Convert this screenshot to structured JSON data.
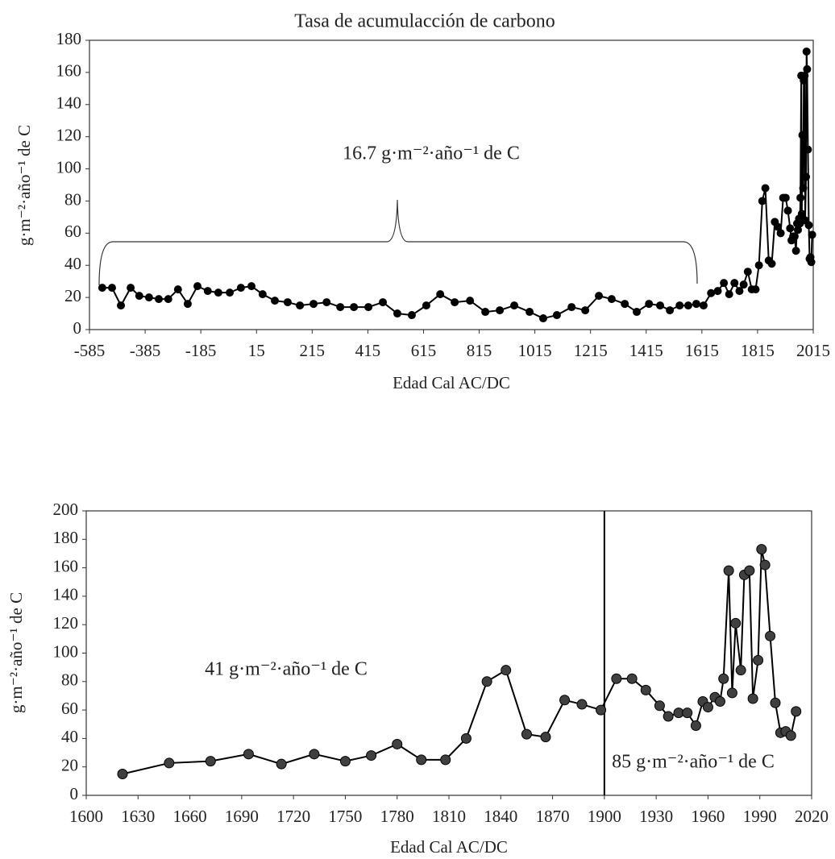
{
  "chart_data": [
    {
      "type": "line",
      "title": "Tasa de acumulacción de carbono",
      "annotation": "16.7 g·m⁻²·año⁻¹ de C",
      "x_label": "Edad Cal AC/DC",
      "y_label": "g·m⁻²·año⁻¹ de C",
      "x": [
        -539,
        -504,
        -472,
        -437,
        -406,
        -371,
        -336,
        -302,
        -267,
        -232,
        -197,
        -160,
        -122,
        -81,
        -41,
        -3,
        37,
        81,
        127,
        171,
        220,
        267,
        316,
        365,
        417,
        469,
        521,
        573,
        625,
        675,
        727,
        782,
        837,
        889,
        941,
        996,
        1045,
        1094,
        1147,
        1196,
        1245,
        1291,
        1338,
        1381,
        1425,
        1465,
        1500,
        1535,
        1566,
        1595,
        1621,
        1648,
        1672,
        1694,
        1713,
        1732,
        1750,
        1765,
        1780,
        1794,
        1808,
        1820,
        1832,
        1843,
        1855,
        1866,
        1877,
        1887,
        1898,
        1907,
        1916,
        1924,
        1932,
        1937,
        1943,
        1948,
        1953,
        1957,
        1960,
        1964,
        1967,
        1969,
        1972,
        1974,
        1976,
        1979,
        1981,
        1984,
        1986,
        1989,
        1991,
        1993,
        1996,
        1999,
        2002,
        2005,
        2008,
        2011
      ],
      "series": [
        {
          "color": "#000000",
          "marker_color": "#000000",
          "values": [
            26,
            26,
            15,
            26,
            21,
            20,
            19,
            19,
            25,
            16,
            27,
            24,
            23,
            23,
            26,
            27,
            22,
            18,
            17,
            15,
            16,
            17,
            14,
            14,
            14,
            17,
            10,
            9,
            15,
            22,
            17,
            18,
            11,
            12,
            15,
            11,
            7,
            9,
            14,
            12,
            21,
            19,
            16,
            11,
            16,
            15,
            12,
            15,
            15,
            16,
            15,
            22.7,
            24,
            29,
            22,
            29,
            24,
            28,
            36,
            25,
            25,
            40,
            80,
            88,
            43,
            41,
            67,
            64,
            60,
            82,
            82,
            74,
            63,
            55.5,
            58,
            58,
            49,
            66,
            62,
            69,
            66,
            82,
            158,
            72,
            121,
            88,
            155,
            158,
            68,
            95,
            173,
            162,
            112,
            65,
            44,
            45,
            42,
            59
          ]
        }
      ],
      "xlim": [
        -585,
        2015
      ],
      "ylim": [
        0,
        180
      ],
      "xticks": [
        -585,
        -385,
        -185,
        15,
        215,
        415,
        615,
        815,
        1015,
        1215,
        1415,
        1615,
        1815,
        2015
      ],
      "yticks": [
        0,
        20,
        40,
        60,
        80,
        100,
        120,
        140,
        160,
        180
      ]
    },
    {
      "type": "line",
      "annotations": [
        "41 g·m⁻²·año⁻¹  de C",
        "85 g·m⁻²·año⁻¹ de C"
      ],
      "x_label": "Edad Cal AC/DC",
      "y_label": "g·m⁻²·año⁻¹ de C",
      "x": [
        1621,
        1648,
        1672,
        1694,
        1713,
        1732,
        1750,
        1765,
        1780,
        1794,
        1808,
        1820,
        1832,
        1843,
        1855,
        1866,
        1877,
        1887,
        1898,
        1907,
        1916,
        1924,
        1932,
        1937,
        1943,
        1948,
        1953,
        1957,
        1960,
        1964,
        1967,
        1969,
        1972,
        1974,
        1976,
        1979,
        1981,
        1984,
        1986,
        1989,
        1991,
        1993,
        1996,
        1999,
        2002,
        2005,
        2008,
        2011
      ],
      "series": [
        {
          "color": "#000000",
          "marker_color": "#404040",
          "values": [
            15,
            22.7,
            24,
            29,
            22,
            29,
            24,
            28,
            36,
            25,
            25,
            40,
            80,
            88,
            43,
            41,
            67,
            64,
            60,
            82,
            82,
            74,
            63,
            55.5,
            58,
            58,
            49,
            66,
            62,
            69,
            66,
            82,
            158,
            72,
            121,
            88,
            155,
            158,
            68,
            95,
            173,
            162,
            112,
            65,
            44,
            45,
            42,
            59
          ]
        }
      ],
      "vline": 1900,
      "xlim": [
        1600,
        2020
      ],
      "ylim": [
        0,
        200
      ],
      "xticks": [
        1600,
        1630,
        1660,
        1690,
        1720,
        1750,
        1780,
        1810,
        1840,
        1870,
        1900,
        1930,
        1960,
        1990,
        2020
      ],
      "yticks": [
        0,
        20,
        40,
        60,
        80,
        100,
        120,
        140,
        160,
        180,
        200
      ]
    }
  ]
}
